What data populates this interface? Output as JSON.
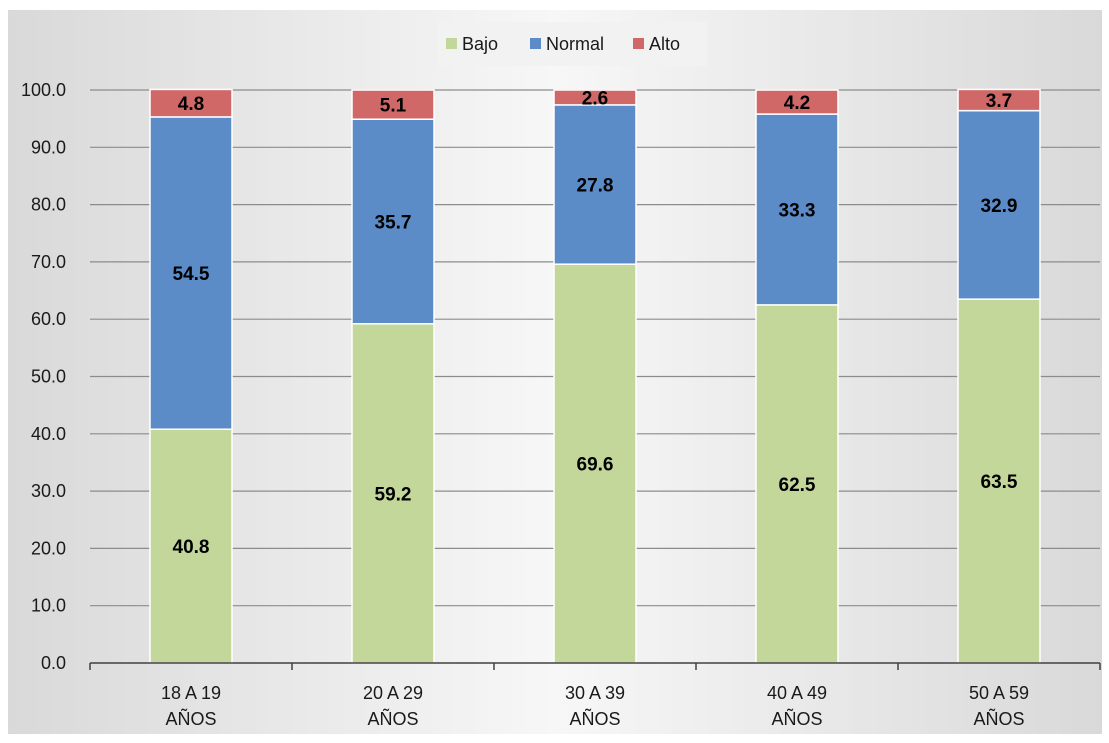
{
  "chart_data": {
    "type": "bar",
    "stacked": true,
    "title": "",
    "xlabel": "",
    "ylabel": "",
    "ylim": [
      0,
      100
    ],
    "ytick_step": 10,
    "ytick_decimals": 1,
    "grid": true,
    "legend_position": "top",
    "categories": [
      [
        "18 A 19",
        "AÑOS"
      ],
      [
        "20 A 29",
        "AÑOS"
      ],
      [
        "30 A 39",
        "AÑOS"
      ],
      [
        "40 A 49",
        "AÑOS"
      ],
      [
        "50 A 59",
        "AÑOS"
      ]
    ],
    "series": [
      {
        "name": "Bajo",
        "color": "#c4d79b",
        "values": [
          40.8,
          59.2,
          69.6,
          62.5,
          63.5
        ]
      },
      {
        "name": "Normal",
        "color": "#5b8cc8",
        "values": [
          54.5,
          35.7,
          27.8,
          33.3,
          32.9
        ]
      },
      {
        "name": "Alto",
        "color": "#d06868",
        "values": [
          4.8,
          5.1,
          2.6,
          4.2,
          3.7
        ]
      }
    ]
  }
}
